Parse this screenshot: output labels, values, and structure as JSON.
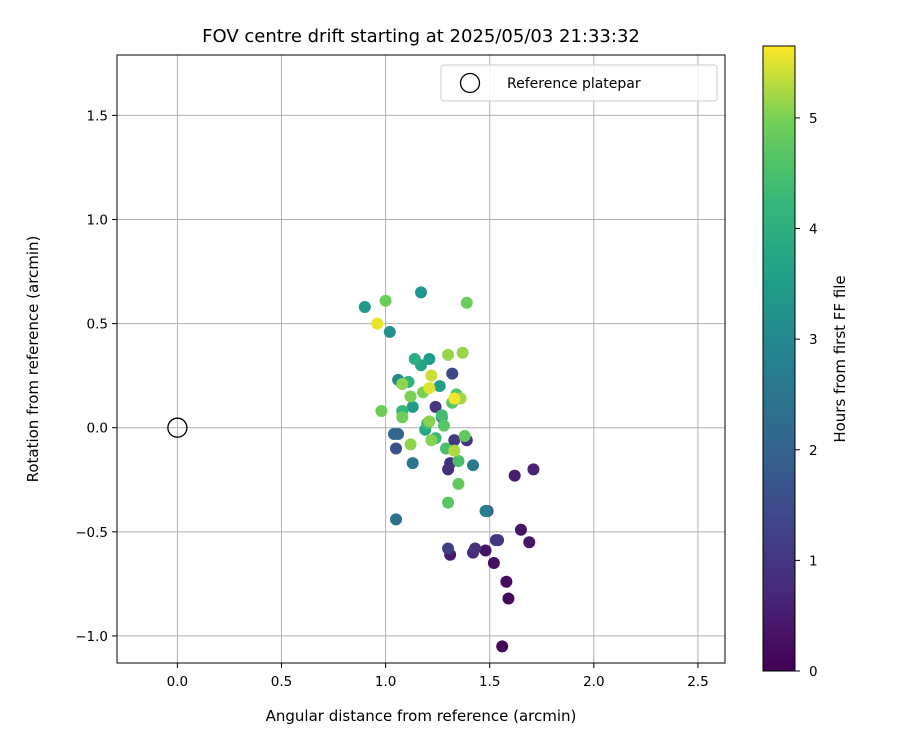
{
  "chart_data": {
    "type": "scatter",
    "title": "FOV centre drift starting at 2025/05/03 21:33:32",
    "xlabel": "Angular distance from reference (arcmin)",
    "ylabel": "Rotation from reference (arcmin)",
    "xlim": [
      -0.29,
      2.63
    ],
    "ylim": [
      -1.13,
      1.79
    ],
    "xticks": [
      0.0,
      0.5,
      1.0,
      1.5,
      2.0,
      2.5
    ],
    "xtick_labels": [
      "0.0",
      "0.5",
      "1.0",
      "1.5",
      "2.0",
      "2.5"
    ],
    "yticks": [
      -1.0,
      -0.5,
      0.0,
      0.5,
      1.0,
      1.5
    ],
    "ytick_labels": [
      "−1.0",
      "−0.5",
      "0.0",
      "0.5",
      "1.0",
      "1.5"
    ],
    "grid": true,
    "legend": {
      "location": "top-right",
      "entries": [
        "Reference platepar"
      ]
    },
    "reference_point": {
      "x": 0.0,
      "y": 0.0
    },
    "colorbar": {
      "label": "Hours from first FF file",
      "range": [
        0,
        5.65
      ],
      "ticks": [
        0,
        1,
        2,
        3,
        4,
        5
      ],
      "tick_labels": [
        "0",
        "1",
        "2",
        "3",
        "4",
        "5"
      ],
      "colormap": "viridis"
    },
    "points": [
      {
        "x": 1.56,
        "y": -1.05,
        "hours": 0.1
      },
      {
        "x": 1.59,
        "y": -0.82,
        "hours": 0.15
      },
      {
        "x": 1.58,
        "y": -0.74,
        "hours": 0.2
      },
      {
        "x": 1.52,
        "y": -0.65,
        "hours": 0.25
      },
      {
        "x": 1.48,
        "y": -0.59,
        "hours": 0.3
      },
      {
        "x": 1.65,
        "y": -0.49,
        "hours": 0.35
      },
      {
        "x": 1.69,
        "y": -0.55,
        "hours": 0.4
      },
      {
        "x": 1.62,
        "y": -0.23,
        "hours": 0.55
      },
      {
        "x": 1.71,
        "y": -0.2,
        "hours": 0.65
      },
      {
        "x": 1.31,
        "y": -0.61,
        "hours": 0.45
      },
      {
        "x": 1.42,
        "y": -0.6,
        "hours": 0.7
      },
      {
        "x": 1.43,
        "y": -0.58,
        "hours": 0.85
      },
      {
        "x": 1.53,
        "y": -0.54,
        "hours": 0.95
      },
      {
        "x": 1.54,
        "y": -0.54,
        "hours": 1.05
      },
      {
        "x": 1.3,
        "y": -0.58,
        "hours": 1.2
      },
      {
        "x": 1.3,
        "y": -0.2,
        "hours": 0.8
      },
      {
        "x": 1.31,
        "y": -0.17,
        "hours": 0.9
      },
      {
        "x": 1.39,
        "y": -0.06,
        "hours": 0.95
      },
      {
        "x": 1.33,
        "y": -0.06,
        "hours": 1.1
      },
      {
        "x": 1.24,
        "y": 0.1,
        "hours": 1.0
      },
      {
        "x": 1.32,
        "y": 0.26,
        "hours": 1.4
      },
      {
        "x": 1.49,
        "y": -0.4,
        "hours": 1.8
      },
      {
        "x": 1.05,
        "y": -0.1,
        "hours": 1.6
      },
      {
        "x": 1.04,
        "y": -0.03,
        "hours": 2.2
      },
      {
        "x": 1.06,
        "y": -0.03,
        "hours": 2.1
      },
      {
        "x": 1.05,
        "y": -0.44,
        "hours": 2.3
      },
      {
        "x": 1.13,
        "y": -0.17,
        "hours": 2.5
      },
      {
        "x": 1.42,
        "y": -0.18,
        "hours": 2.6
      },
      {
        "x": 1.48,
        "y": -0.4,
        "hours": 2.7
      },
      {
        "x": 1.27,
        "y": 0.05,
        "hours": 2.8
      },
      {
        "x": 1.06,
        "y": 0.23,
        "hours": 3.0
      },
      {
        "x": 1.02,
        "y": 0.46,
        "hours": 3.2
      },
      {
        "x": 0.9,
        "y": 0.58,
        "hours": 3.4
      },
      {
        "x": 1.17,
        "y": 0.65,
        "hours": 3.3
      },
      {
        "x": 1.21,
        "y": 0.33,
        "hours": 3.5
      },
      {
        "x": 1.26,
        "y": 0.2,
        "hours": 3.6
      },
      {
        "x": 1.13,
        "y": 0.1,
        "hours": 3.5
      },
      {
        "x": 1.17,
        "y": 0.3,
        "hours": 3.7
      },
      {
        "x": 1.19,
        "y": -0.01,
        "hours": 3.8
      },
      {
        "x": 1.14,
        "y": 0.33,
        "hours": 4.0
      },
      {
        "x": 1.11,
        "y": 0.22,
        "hours": 4.1
      },
      {
        "x": 1.08,
        "y": 0.08,
        "hours": 4.2
      },
      {
        "x": 1.2,
        "y": 0.02,
        "hours": 4.3
      },
      {
        "x": 1.24,
        "y": -0.05,
        "hours": 4.3
      },
      {
        "x": 1.27,
        "y": 0.06,
        "hours": 4.4
      },
      {
        "x": 1.29,
        "y": -0.1,
        "hours": 4.5
      },
      {
        "x": 1.35,
        "y": -0.16,
        "hours": 4.5
      },
      {
        "x": 1.32,
        "y": 0.12,
        "hours": 4.6
      },
      {
        "x": 1.34,
        "y": 0.16,
        "hours": 4.6
      },
      {
        "x": 1.28,
        "y": 0.01,
        "hours": 4.7
      },
      {
        "x": 1.3,
        "y": -0.36,
        "hours": 4.7
      },
      {
        "x": 1.35,
        "y": -0.27,
        "hours": 4.8
      },
      {
        "x": 1.38,
        "y": -0.04,
        "hours": 4.8
      },
      {
        "x": 1.0,
        "y": 0.61,
        "hours": 4.9
      },
      {
        "x": 1.39,
        "y": 0.6,
        "hours": 4.9
      },
      {
        "x": 0.98,
        "y": 0.08,
        "hours": 4.9
      },
      {
        "x": 1.08,
        "y": 0.05,
        "hours": 4.95
      },
      {
        "x": 1.12,
        "y": 0.15,
        "hours": 5.0
      },
      {
        "x": 1.18,
        "y": 0.17,
        "hours": 5.0
      },
      {
        "x": 1.21,
        "y": 0.03,
        "hours": 5.05
      },
      {
        "x": 1.22,
        "y": -0.06,
        "hours": 5.05
      },
      {
        "x": 1.12,
        "y": -0.08,
        "hours": 5.1
      },
      {
        "x": 1.08,
        "y": 0.21,
        "hours": 5.1
      },
      {
        "x": 1.3,
        "y": 0.35,
        "hours": 5.15
      },
      {
        "x": 1.37,
        "y": 0.36,
        "hours": 5.15
      },
      {
        "x": 1.36,
        "y": 0.14,
        "hours": 5.2
      },
      {
        "x": 1.33,
        "y": -0.11,
        "hours": 5.25
      },
      {
        "x": 1.22,
        "y": 0.25,
        "hours": 5.4
      },
      {
        "x": 1.21,
        "y": 0.19,
        "hours": 5.5
      },
      {
        "x": 0.96,
        "y": 0.5,
        "hours": 5.55
      },
      {
        "x": 1.33,
        "y": 0.14,
        "hours": 5.6
      }
    ]
  }
}
